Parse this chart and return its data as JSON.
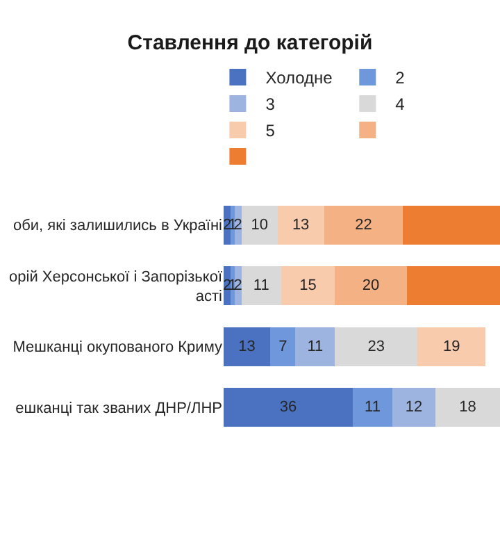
{
  "chart_data": {
    "type": "bar",
    "orientation": "horizontal",
    "stacked": true,
    "title": "Ставлення до категорій",
    "categories": [
      "оби, які залишились в Україні",
      "орій Херсонської і Запорізької\nасті",
      "Мешканці окупованого Криму",
      "ешканці так званих ДНР/ЛНР"
    ],
    "xlim": [
      0,
      77
    ],
    "tick_labels": "y",
    "legend": "top",
    "series": [
      {
        "name": "Холодне",
        "color": "#4a72c0",
        "values": [
          2,
          2,
          13,
          36
        ],
        "value_labels": [
          "2",
          "2",
          "13",
          "36"
        ]
      },
      {
        "name": "2",
        "color": "#6f97dc",
        "values": [
          1,
          1,
          7,
          11
        ],
        "value_labels": [
          "1",
          "1",
          "7",
          "11"
        ]
      },
      {
        "name": "3",
        "color": "#9db4e0",
        "values": [
          2,
          2,
          11,
          12
        ],
        "value_labels": [
          "2",
          "2",
          "11",
          "12"
        ]
      },
      {
        "name": "4",
        "color": "#d9d9d9",
        "values": [
          10,
          11,
          23,
          18
        ],
        "value_labels": [
          "10",
          "11",
          "23",
          "18"
        ]
      },
      {
        "name": "5",
        "color": "#f8cbad",
        "values": [
          13,
          15,
          19,
          null
        ],
        "value_labels": [
          "13",
          "15",
          "19",
          null
        ]
      },
      {
        "color": "#f4b183",
        "values": [
          22,
          20,
          null,
          null
        ],
        "value_labels": [
          "22",
          "20",
          null,
          null
        ]
      },
      {
        "color": "#ed7d31",
        "values": [
          27,
          26,
          null,
          null
        ],
        "value_labels": [
          null,
          null,
          null,
          null
        ]
      }
    ]
  }
}
